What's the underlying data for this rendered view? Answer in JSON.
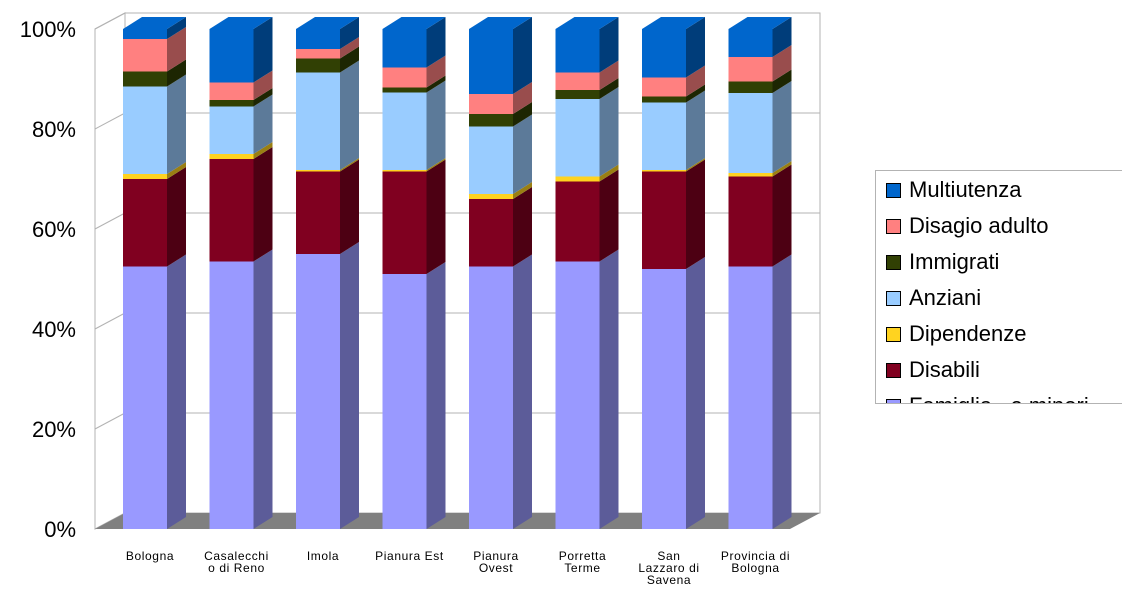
{
  "chart_data": {
    "type": "bar",
    "stacked": true,
    "percent": true,
    "three_d": true,
    "title": "",
    "xlabel": "",
    "ylabel": "",
    "ylim": [
      0,
      100
    ],
    "grid": true,
    "legend_position": "right",
    "y_ticks": [
      "0%",
      "20%",
      "40%",
      "60%",
      "80%",
      "100%"
    ],
    "categories": [
      [
        "Bologna"
      ],
      [
        "Casalecchi",
        "o di Reno"
      ],
      [
        "Imola"
      ],
      [
        "Pianura Est"
      ],
      [
        "Pianura",
        "Ovest"
      ],
      [
        "Porretta",
        "Terme"
      ],
      [
        "San",
        "Lazzaro di",
        "Savena"
      ],
      [
        "Provincia di",
        "Bologna"
      ]
    ],
    "series": [
      {
        "name": "Famiglia   e minori",
        "color": "#9999ff",
        "side": "#5c5c99",
        "values": [
          52.5,
          53.5,
          55.0,
          51.0,
          52.5,
          53.5,
          52.0,
          52.5
        ]
      },
      {
        "name": "Disabili",
        "color": "#800020",
        "side": "#4d0013",
        "values": [
          17.5,
          20.5,
          16.5,
          20.5,
          13.5,
          16.0,
          19.5,
          18.0
        ]
      },
      {
        "name": "Dipendenze",
        "color": "#ffd320",
        "side": "#997f13",
        "values": [
          1.0,
          1.0,
          0.3,
          0.3,
          1.0,
          1.0,
          0.3,
          0.7
        ]
      },
      {
        "name": "Anziani",
        "color": "#99ccff",
        "side": "#5c7a99",
        "values": [
          17.5,
          9.5,
          19.5,
          15.5,
          13.5,
          15.5,
          13.5,
          16.0
        ]
      },
      {
        "name": "Immigrati",
        "color": "#314004",
        "side": "#1d2602",
        "values": [
          3.0,
          1.3,
          2.8,
          1.0,
          2.5,
          1.8,
          1.2,
          2.3
        ]
      },
      {
        "name": "Disagio adulto",
        "color": "#ff8080",
        "side": "#994d4d",
        "values": [
          6.5,
          3.5,
          1.9,
          4.0,
          4.0,
          3.5,
          3.8,
          4.9
        ]
      },
      {
        "name": "Multiutenza",
        "color": "#0066cc",
        "side": "#003d7a",
        "values": [
          2.0,
          10.7,
          4.0,
          7.7,
          13.0,
          8.7,
          9.7,
          5.6
        ]
      }
    ]
  }
}
